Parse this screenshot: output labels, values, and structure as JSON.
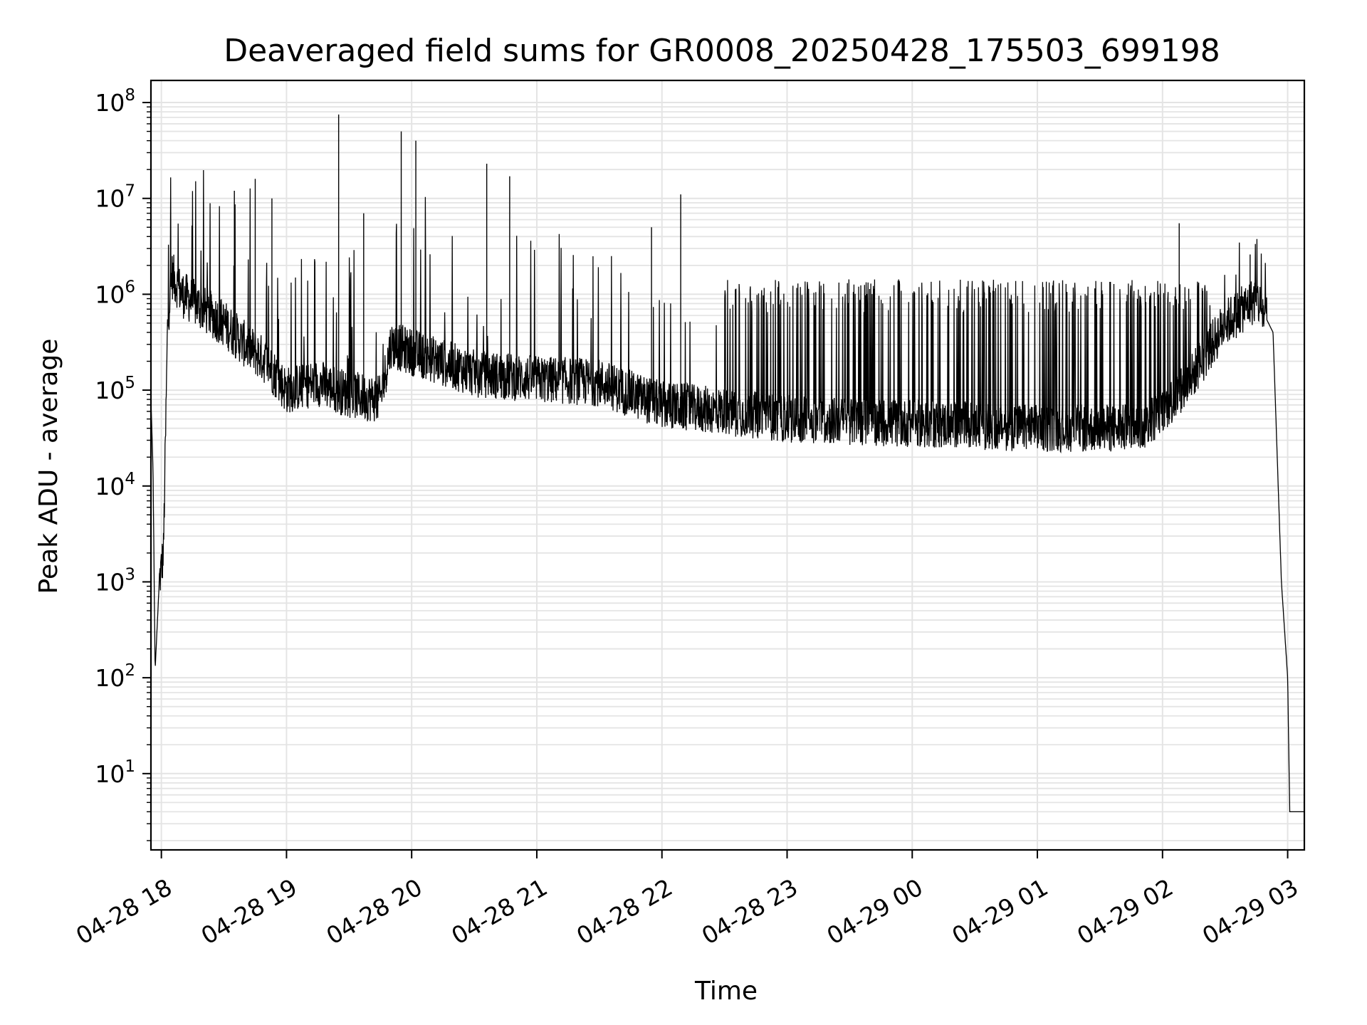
{
  "chart_data": {
    "type": "line",
    "title": "Deaveraged field sums for GR0008_20250428_175503_699198",
    "xlabel": "Time",
    "ylabel": "Peak ADU - average",
    "yscale": "log",
    "ylim": [
      1.6,
      170000000
    ],
    "xlim": [
      "2025-04-28 17:55",
      "2025-04-29 03:08"
    ],
    "grid": true,
    "x_ticks": [
      {
        "time": "2025-04-28 18:00",
        "label": "04-28 18"
      },
      {
        "time": "2025-04-28 19:00",
        "label": "04-28 19"
      },
      {
        "time": "2025-04-28 20:00",
        "label": "04-28 20"
      },
      {
        "time": "2025-04-28 21:00",
        "label": "04-28 21"
      },
      {
        "time": "2025-04-28 22:00",
        "label": "04-28 22"
      },
      {
        "time": "2025-04-28 23:00",
        "label": "04-28 23"
      },
      {
        "time": "2025-04-29 00:00",
        "label": "04-29 00"
      },
      {
        "time": "2025-04-29 01:00",
        "label": "04-29 01"
      },
      {
        "time": "2025-04-29 02:00",
        "label": "04-29 02"
      },
      {
        "time": "2025-04-29 03:00",
        "label": "04-29 03"
      }
    ],
    "y_ticks": [
      {
        "value": 10,
        "base": "10",
        "exp": "1"
      },
      {
        "value": 100,
        "base": "10",
        "exp": "2"
      },
      {
        "value": 1000,
        "base": "10",
        "exp": "3"
      },
      {
        "value": 10000,
        "base": "10",
        "exp": "4"
      },
      {
        "value": 100000,
        "base": "10",
        "exp": "5"
      },
      {
        "value": 1000000,
        "base": "10",
        "exp": "6"
      },
      {
        "value": 10000000,
        "base": "10",
        "exp": "7"
      },
      {
        "value": 100000000,
        "base": "10",
        "exp": "8"
      }
    ],
    "series": [
      {
        "color": "#000000",
        "points": [
          {
            "t": "2025-04-28 17:55",
            "y": 80000
          },
          {
            "t": "2025-04-28 17:56",
            "y": 15000
          },
          {
            "t": "2025-04-28 17:57",
            "y": 120
          },
          {
            "t": "2025-04-28 17:59",
            "y": 1000
          },
          {
            "t": "2025-04-28 18:01",
            "y": 2000
          },
          {
            "t": "2025-04-28 18:03",
            "y": 500000
          },
          {
            "t": "2025-04-28 18:05",
            "y": 1600000
          },
          {
            "t": "2025-04-28 18:10",
            "y": 1000000
          },
          {
            "t": "2025-04-28 18:20",
            "y": 700000
          },
          {
            "t": "2025-04-28 18:30",
            "y": 500000
          },
          {
            "t": "2025-04-28 18:40",
            "y": 300000
          },
          {
            "t": "2025-04-28 18:50",
            "y": 200000
          },
          {
            "t": "2025-04-28 19:00",
            "y": 100000
          },
          {
            "t": "2025-04-28 19:15",
            "y": 120000
          },
          {
            "t": "2025-04-28 19:30",
            "y": 90000
          },
          {
            "t": "2025-04-28 19:45",
            "y": 80000
          },
          {
            "t": "2025-04-28 19:50",
            "y": 300000
          },
          {
            "t": "2025-04-28 20:00",
            "y": 250000
          },
          {
            "t": "2025-04-28 20:30",
            "y": 150000
          },
          {
            "t": "2025-04-28 21:00",
            "y": 130000
          },
          {
            "t": "2025-04-28 21:30",
            "y": 120000
          },
          {
            "t": "2025-04-28 22:00",
            "y": 70000
          },
          {
            "t": "2025-04-28 22:30",
            "y": 60000
          },
          {
            "t": "2025-04-28 23:00",
            "y": 50000
          },
          {
            "t": "2025-04-29 00:00",
            "y": 45000
          },
          {
            "t": "2025-04-29 01:00",
            "y": 40000
          },
          {
            "t": "2025-04-29 01:50",
            "y": 40000
          },
          {
            "t": "2025-04-29 02:10",
            "y": 100000
          },
          {
            "t": "2025-04-29 02:30",
            "y": 500000
          },
          {
            "t": "2025-04-29 02:45",
            "y": 900000
          },
          {
            "t": "2025-04-29 02:53",
            "y": 400000
          },
          {
            "t": "2025-04-29 02:57",
            "y": 1000
          },
          {
            "t": "2025-04-29 03:00",
            "y": 100
          },
          {
            "t": "2025-04-29 03:01",
            "y": 4
          },
          {
            "t": "2025-04-29 03:08",
            "y": 4
          }
        ]
      }
    ],
    "spikes": [
      {
        "t": "2025-04-28 18:35",
        "y": 12000000
      },
      {
        "t": "2025-04-28 18:45",
        "y": 16000000
      },
      {
        "t": "2025-04-28 18:53",
        "y": 10000000
      },
      {
        "t": "2025-04-28 19:25",
        "y": 75000000
      },
      {
        "t": "2025-04-28 19:37",
        "y": 7000000
      },
      {
        "t": "2025-04-28 19:55",
        "y": 50000000
      },
      {
        "t": "2025-04-28 20:02",
        "y": 40000000
      },
      {
        "t": "2025-04-28 20:36",
        "y": 23000000
      },
      {
        "t": "2025-04-28 20:47",
        "y": 17000000
      },
      {
        "t": "2025-04-28 22:09",
        "y": 11000000
      },
      {
        "t": "2025-04-28 21:55",
        "y": 5000000
      },
      {
        "t": "2025-04-29 02:08",
        "y": 5500000
      },
      {
        "t": "2025-04-29 02:42",
        "y": 2600000
      }
    ],
    "dense_oscillation": {
      "start": "2025-04-28 22:30",
      "end": "2025-04-29 02:25",
      "low": 30000,
      "high": 1300000
    }
  }
}
